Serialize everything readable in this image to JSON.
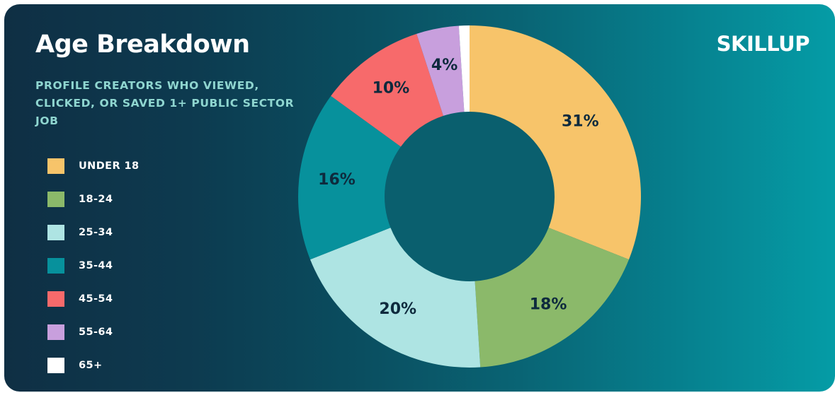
{
  "header": {
    "title": "Age Breakdown",
    "subtitle": "PROFILE CREATORS WHO VIEWED, CLICKED, OR SAVED 1+ PUBLIC SECTOR JOB",
    "brand": "SKILLUP"
  },
  "colors": {
    "background_start": "#0f2f44",
    "background_end": "#059ca6",
    "hole": "#0a5f6e",
    "label_dark": "#0e2a3d"
  },
  "chart_data": {
    "type": "pie",
    "donut": true,
    "title": "Age Breakdown",
    "subtitle": "PROFILE CREATORS WHO VIEWED, CLICKED, OR SAVED 1+ PUBLIC SECTOR JOB",
    "legend_position": "left",
    "categories": [
      "UNDER 18",
      "18-24",
      "25-34",
      "35-44",
      "45-54",
      "55-64",
      "65+"
    ],
    "values": [
      31,
      18,
      20,
      16,
      10,
      4,
      1
    ],
    "data_labels": [
      "31%",
      "18%",
      "20%",
      "16%",
      "10%",
      "4%",
      ""
    ],
    "colors": [
      "#f7c46a",
      "#8bb96a",
      "#aee4e3",
      "#07919c",
      "#f76a6b",
      "#c89fdd",
      "#ffffff"
    ]
  }
}
